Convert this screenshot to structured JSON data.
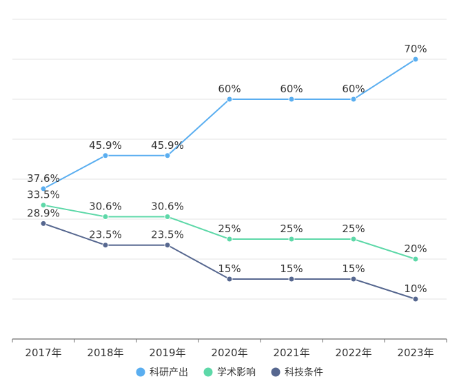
{
  "chart_data": {
    "type": "line",
    "categories": [
      "2017年",
      "2018年",
      "2019年",
      "2020年",
      "2021年",
      "2022年",
      "2023年"
    ],
    "ylim": [
      0,
      80
    ],
    "grid": true,
    "legend_position": "bottom-center",
    "series": [
      {
        "name": "科研产出",
        "color": "#5aaef0",
        "values": [
          37.6,
          45.9,
          45.9,
          60,
          60,
          60,
          70
        ],
        "labels": [
          "37.6%",
          "45.9%",
          "45.9%",
          "60%",
          "60%",
          "60%",
          "70%"
        ]
      },
      {
        "name": "学术影响",
        "color": "#5dd8a8",
        "values": [
          33.5,
          30.6,
          30.6,
          25,
          25,
          25,
          20
        ],
        "labels": [
          "33.5%",
          "30.6%",
          "30.6%",
          "25%",
          "25%",
          "25%",
          "20%"
        ]
      },
      {
        "name": "科技条件",
        "color": "#56678f",
        "values": [
          28.9,
          23.5,
          23.5,
          15,
          15,
          15,
          10
        ],
        "labels": [
          "28.9%",
          "23.5%",
          "23.5%",
          "15%",
          "15%",
          "15%",
          "10%"
        ]
      }
    ]
  }
}
